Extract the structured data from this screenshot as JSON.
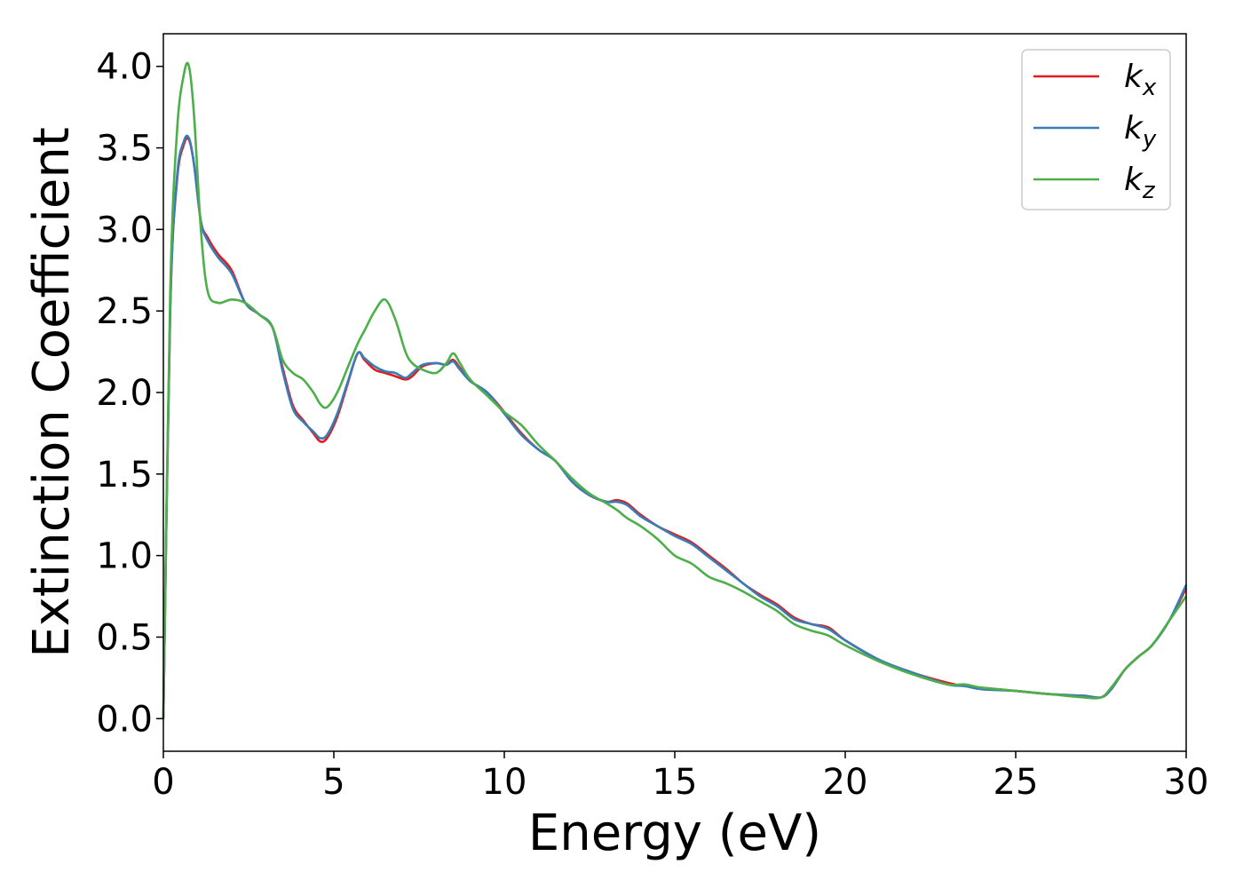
{
  "chart_data": {
    "type": "line",
    "title": "",
    "xlabel": "Energy (eV)",
    "ylabel": "Extinction Coefficient",
    "xlim": [
      0,
      30
    ],
    "ylim": [
      -0.2,
      4.2
    ],
    "xticks": [
      0,
      5,
      10,
      15,
      20,
      25,
      30
    ],
    "xtick_labels": [
      "0",
      "5",
      "10",
      "15",
      "20",
      "25",
      "30"
    ],
    "yticks": [
      0.0,
      0.5,
      1.0,
      1.5,
      2.0,
      2.5,
      3.0,
      3.5,
      4.0
    ],
    "ytick_labels": [
      "0.0",
      "0.5",
      "1.0",
      "1.5",
      "2.0",
      "2.5",
      "3.0",
      "3.5",
      "4.0"
    ],
    "grid": false,
    "legend_position": "top-right",
    "series": [
      {
        "name": "kx",
        "legend_main": "k",
        "legend_sub": "x",
        "color": "#e41a1c",
        "x": [
          0,
          0.2,
          0.4,
          0.6,
          0.75,
          0.9,
          1.1,
          1.3,
          1.6,
          2.0,
          2.4,
          2.8,
          3.2,
          3.5,
          3.8,
          4.1,
          4.4,
          4.6,
          4.8,
          5.1,
          5.4,
          5.7,
          5.9,
          6.2,
          6.5,
          6.8,
          7.1,
          7.3,
          7.6,
          8.0,
          8.3,
          8.5,
          8.7,
          9.0,
          9.5,
          10.0,
          10.5,
          11.0,
          11.5,
          12.0,
          12.5,
          13.0,
          13.3,
          13.6,
          14.0,
          14.5,
          15.0,
          15.5,
          16.0,
          16.5,
          17.0,
          17.5,
          18.0,
          18.5,
          19.0,
          19.5,
          20.0,
          21.0,
          22.0,
          23.0,
          23.5,
          24.0,
          25.0,
          26.0,
          27.0,
          27.5,
          27.8,
          28.2,
          28.6,
          29.0,
          29.5,
          30.0
        ],
        "y": [
          0.0,
          2.5,
          3.3,
          3.52,
          3.55,
          3.4,
          3.05,
          2.95,
          2.85,
          2.75,
          2.55,
          2.48,
          2.4,
          2.15,
          1.92,
          1.83,
          1.75,
          1.7,
          1.72,
          1.85,
          2.05,
          2.24,
          2.2,
          2.14,
          2.12,
          2.1,
          2.08,
          2.1,
          2.16,
          2.18,
          2.17,
          2.2,
          2.15,
          2.07,
          2.0,
          1.88,
          1.75,
          1.65,
          1.58,
          1.45,
          1.37,
          1.33,
          1.34,
          1.32,
          1.25,
          1.18,
          1.13,
          1.08,
          1.0,
          0.92,
          0.83,
          0.76,
          0.7,
          0.62,
          0.58,
          0.56,
          0.48,
          0.36,
          0.28,
          0.22,
          0.2,
          0.19,
          0.17,
          0.15,
          0.14,
          0.13,
          0.18,
          0.3,
          0.38,
          0.45,
          0.6,
          0.8
        ]
      },
      {
        "name": "ky",
        "legend_main": "k",
        "legend_sub": "y",
        "color": "#377eb8",
        "x": [
          0,
          0.2,
          0.4,
          0.6,
          0.75,
          0.9,
          1.1,
          1.3,
          1.6,
          2.0,
          2.4,
          2.8,
          3.2,
          3.5,
          3.8,
          4.1,
          4.4,
          4.6,
          4.8,
          5.1,
          5.4,
          5.7,
          5.9,
          6.2,
          6.5,
          6.8,
          7.1,
          7.3,
          7.6,
          8.0,
          8.3,
          8.5,
          8.7,
          9.0,
          9.5,
          10.0,
          10.5,
          11.0,
          11.5,
          12.0,
          12.5,
          13.0,
          13.3,
          13.6,
          14.0,
          14.5,
          15.0,
          15.5,
          16.0,
          16.5,
          17.0,
          17.5,
          18.0,
          18.5,
          19.0,
          19.5,
          20.0,
          21.0,
          22.0,
          23.0,
          23.5,
          24.0,
          25.0,
          26.0,
          27.0,
          27.5,
          27.8,
          28.2,
          28.6,
          29.0,
          29.5,
          30.0
        ],
        "y": [
          0.0,
          2.5,
          3.32,
          3.54,
          3.56,
          3.4,
          3.05,
          2.93,
          2.83,
          2.73,
          2.55,
          2.48,
          2.4,
          2.13,
          1.9,
          1.82,
          1.76,
          1.72,
          1.74,
          1.87,
          2.06,
          2.24,
          2.21,
          2.16,
          2.13,
          2.12,
          2.09,
          2.12,
          2.17,
          2.18,
          2.17,
          2.19,
          2.14,
          2.07,
          2.0,
          1.87,
          1.74,
          1.65,
          1.58,
          1.45,
          1.37,
          1.33,
          1.33,
          1.31,
          1.24,
          1.18,
          1.12,
          1.07,
          0.99,
          0.91,
          0.83,
          0.75,
          0.69,
          0.61,
          0.58,
          0.55,
          0.48,
          0.36,
          0.28,
          0.21,
          0.2,
          0.18,
          0.17,
          0.15,
          0.14,
          0.13,
          0.18,
          0.3,
          0.38,
          0.45,
          0.6,
          0.82
        ]
      },
      {
        "name": "kz",
        "legend_main": "k",
        "legend_sub": "z",
        "color": "#4daf4a",
        "x": [
          0,
          0.2,
          0.4,
          0.6,
          0.75,
          0.9,
          1.1,
          1.3,
          1.6,
          2.0,
          2.4,
          2.8,
          3.2,
          3.5,
          3.8,
          4.1,
          4.4,
          4.6,
          4.8,
          5.1,
          5.4,
          5.7,
          5.9,
          6.2,
          6.5,
          6.8,
          7.1,
          7.3,
          7.6,
          8.0,
          8.3,
          8.5,
          8.7,
          9.0,
          9.5,
          10.0,
          10.5,
          11.0,
          11.5,
          12.0,
          12.5,
          13.0,
          13.3,
          13.6,
          14.0,
          14.5,
          15.0,
          15.5,
          16.0,
          16.5,
          17.0,
          17.5,
          18.0,
          18.5,
          19.0,
          19.5,
          20.0,
          21.0,
          22.0,
          23.0,
          23.5,
          24.0,
          25.0,
          26.0,
          27.0,
          27.5,
          27.8,
          28.2,
          28.6,
          29.0,
          29.5,
          30.0
        ],
        "y": [
          0.0,
          2.6,
          3.6,
          3.95,
          4.0,
          3.7,
          3.0,
          2.62,
          2.55,
          2.57,
          2.55,
          2.48,
          2.4,
          2.2,
          2.12,
          2.08,
          2.0,
          1.93,
          1.91,
          2.0,
          2.15,
          2.3,
          2.38,
          2.5,
          2.57,
          2.45,
          2.25,
          2.18,
          2.14,
          2.12,
          2.18,
          2.24,
          2.18,
          2.08,
          1.98,
          1.88,
          1.8,
          1.68,
          1.58,
          1.47,
          1.38,
          1.32,
          1.28,
          1.23,
          1.18,
          1.1,
          1.0,
          0.95,
          0.87,
          0.83,
          0.78,
          0.72,
          0.66,
          0.58,
          0.54,
          0.51,
          0.45,
          0.35,
          0.27,
          0.21,
          0.21,
          0.19,
          0.17,
          0.15,
          0.13,
          0.13,
          0.19,
          0.3,
          0.38,
          0.45,
          0.6,
          0.75
        ]
      }
    ]
  }
}
